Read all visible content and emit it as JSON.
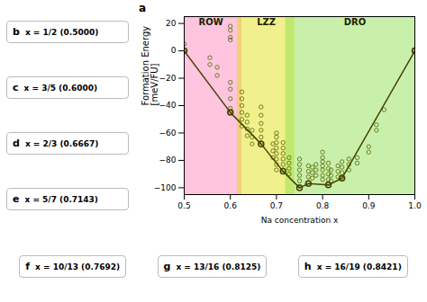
{
  "chart_data": {
    "type": "scatter",
    "panel": "a",
    "xlabel": "Na concentration x",
    "ylabel": "Formation Energy\n[meV/FU]",
    "xlim": [
      0.5,
      1.0
    ],
    "ylim": [
      -105,
      25
    ],
    "xticks": [
      0.5,
      0.6,
      0.7,
      0.8,
      0.9,
      {
        "value": 1.0,
        "label": "1.0"
      }
    ],
    "yticks": [
      -100,
      -80,
      -60,
      -40,
      -20,
      0,
      20
    ],
    "regions": [
      {
        "name": "ROW",
        "xmin": 0.5,
        "xmax": 0.625,
        "color": "#FF7EB6",
        "label_x": 0.558,
        "label_y": 21
      },
      {
        "name": "LZZ",
        "xmin": 0.615,
        "xmax": 0.74,
        "color": "#DDDD00",
        "label_x": 0.678,
        "label_y": 21
      },
      {
        "name": "DRO",
        "xmin": 0.72,
        "xmax": 1.0,
        "color": "#88DD44",
        "label_x": 0.87,
        "label_y": 21
      }
    ],
    "series": [
      {
        "type": "scatter",
        "color": "#556600",
        "marker": "circle",
        "x": [
          0.5,
          0.5,
          0.5556,
          0.5556,
          0.5714,
          0.5714,
          0.6,
          0.6,
          0.6,
          0.6,
          0.6,
          0.6,
          0.6,
          0.6,
          0.6,
          0.625,
          0.625,
          0.625,
          0.625,
          0.625,
          0.625,
          0.6364,
          0.6364,
          0.6364,
          0.6364,
          0.6471,
          0.6471,
          0.6471,
          0.6667,
          0.6667,
          0.6667,
          0.6667,
          0.6667,
          0.6667,
          0.6923,
          0.6923,
          0.6923,
          0.7,
          0.7,
          0.7,
          0.7,
          0.7,
          0.7,
          0.7,
          0.7,
          0.7143,
          0.7143,
          0.7143,
          0.7143,
          0.7143,
          0.7143,
          0.7273,
          0.7273,
          0.7273,
          0.7273,
          0.75,
          0.75,
          0.75,
          0.75,
          0.75,
          0.75,
          0.7692,
          0.7692,
          0.7692,
          0.7692,
          0.7778,
          0.7778,
          0.7778,
          0.7857,
          0.7857,
          0.7857,
          0.8,
          0.8,
          0.8,
          0.8,
          0.8,
          0.8,
          0.8,
          0.8125,
          0.8125,
          0.8125,
          0.8125,
          0.8125,
          0.8182,
          0.8182,
          0.8182,
          0.8333,
          0.8333,
          0.8333,
          0.8421,
          0.8421,
          0.8421,
          0.8421,
          0.857,
          0.857,
          0.857,
          0.875,
          0.875,
          0.9,
          0.9,
          0.9167,
          0.9167,
          0.9333,
          1.0
        ],
        "values": [
          0,
          5,
          -10,
          -5,
          -18,
          -12,
          -45,
          -42,
          -35,
          -28,
          -23,
          18,
          15,
          10,
          8,
          -55,
          -50,
          -45,
          -40,
          -35,
          -30,
          -62,
          -57,
          -52,
          -47,
          -68,
          -63,
          -58,
          -67,
          -63,
          -58,
          -53,
          -47,
          -41,
          -78,
          -73,
          -68,
          -87,
          -83,
          -79,
          -75,
          -71,
          -67,
          -63,
          -60,
          -87,
          -83,
          -79,
          -75,
          -71,
          -67,
          -90,
          -86,
          -82,
          -78,
          -99,
          -95,
          -91,
          -87,
          -83,
          -79,
          -96,
          -92,
          -88,
          -84,
          -93,
          -89,
          -85,
          -91,
          -87,
          -83,
          -94,
          -91,
          -87,
          -84,
          -81,
          -78,
          -74,
          -97,
          -94,
          -90,
          -86,
          -82,
          -95,
          -91,
          -87,
          -92,
          -88,
          -84,
          -93,
          -89,
          -85,
          -81,
          -87,
          -83,
          -79,
          -82,
          -78,
          -74,
          -70,
          -58,
          -54,
          -43,
          0
        ]
      },
      {
        "type": "line",
        "color": "#444400",
        "marker": "circle",
        "line_style": "solid",
        "x": [
          0.5,
          0.6,
          0.6667,
          0.7143,
          0.75,
          0.7692,
          0.8125,
          0.8421,
          1.0
        ],
        "values": [
          0,
          -45,
          -68,
          -88,
          -100,
          -97,
          -98,
          -93,
          0
        ]
      }
    ],
    "panels": [
      {
        "panel": "b",
        "text": "x = 1/2 (0.5000)"
      },
      {
        "panel": "c",
        "text": "x = 3/5 (0.6000)"
      },
      {
        "panel": "d",
        "text": "x = 2/3 (0.6667)"
      },
      {
        "panel": "e",
        "text": "x = 5/7 (0.7143)"
      },
      {
        "panel": "f",
        "text": "x = 10/13 (0.7692)"
      },
      {
        "panel": "g",
        "text": "x = 13/16 (0.8125)"
      },
      {
        "panel": "h",
        "text": "x = 16/19 (0.8421)"
      }
    ]
  }
}
